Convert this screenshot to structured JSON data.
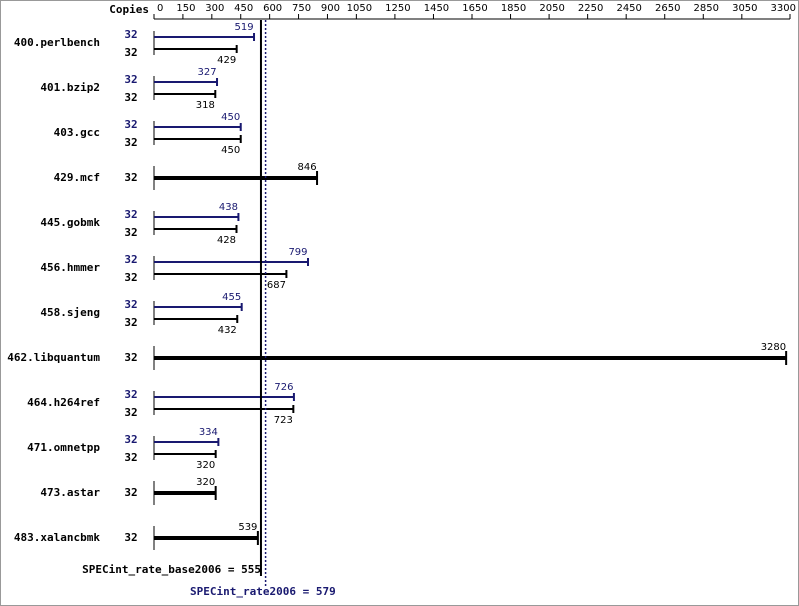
{
  "chart_data": {
    "type": "bar",
    "axis_header": "Copies",
    "xlim": [
      0,
      3300
    ],
    "xticks": [
      0,
      150,
      300,
      450,
      600,
      750,
      900,
      1050,
      1250,
      1450,
      1650,
      1850,
      2050,
      2250,
      2450,
      2650,
      2850,
      3050,
      3300
    ],
    "peak_color": "#191970",
    "base_color": "#000000",
    "rows": [
      {
        "label": "400.perlbench",
        "copies": [
          32,
          32
        ],
        "values": [
          519,
          429
        ]
      },
      {
        "label": "401.bzip2",
        "copies": [
          32,
          32
        ],
        "values": [
          327,
          318
        ]
      },
      {
        "label": "403.gcc",
        "copies": [
          32,
          32
        ],
        "values": [
          450,
          450
        ]
      },
      {
        "label": "429.mcf",
        "copies": [
          32
        ],
        "values": [
          846
        ]
      },
      {
        "label": "445.gobmk",
        "copies": [
          32,
          32
        ],
        "values": [
          438,
          428
        ]
      },
      {
        "label": "456.hmmer",
        "copies": [
          32,
          32
        ],
        "values": [
          799,
          687
        ]
      },
      {
        "label": "458.sjeng",
        "copies": [
          32,
          32
        ],
        "values": [
          455,
          432
        ]
      },
      {
        "label": "462.libquantum",
        "copies": [
          32
        ],
        "values": [
          3280
        ]
      },
      {
        "label": "464.h264ref",
        "copies": [
          32,
          32
        ],
        "values": [
          726,
          723
        ]
      },
      {
        "label": "471.omnetpp",
        "copies": [
          32,
          32
        ],
        "values": [
          334,
          320
        ]
      },
      {
        "label": "473.astar",
        "copies": [
          32
        ],
        "values": [
          320
        ]
      },
      {
        "label": "483.xalancbmk",
        "copies": [
          32
        ],
        "values": [
          539
        ]
      }
    ],
    "reference_lines": [
      {
        "label": "SPECint_rate_base2006 = 555",
        "value": 555,
        "color": "#000000",
        "style": "solid"
      },
      {
        "label": "SPECint_rate2006 = 579",
        "value": 579,
        "color": "#191970",
        "style": "dotted"
      }
    ]
  }
}
